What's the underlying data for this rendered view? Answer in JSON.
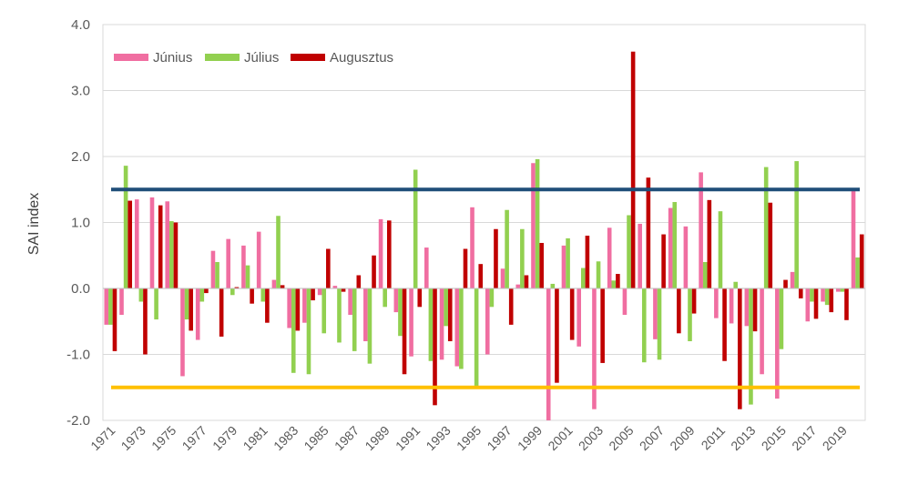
{
  "chart_data": {
    "type": "bar",
    "title": "",
    "xlabel": "",
    "ylabel": "SAI index",
    "ylim": [
      -2.0,
      4.0
    ],
    "yticks": [
      "-2.0",
      "-1.0",
      "0.0",
      "1.0",
      "2.0",
      "3.0",
      "4.0"
    ],
    "ytick_values": [
      -2,
      -1,
      0,
      1,
      2,
      3,
      4
    ],
    "grid": "horizontal",
    "legend_position": "top-left",
    "x": [
      1971,
      1972,
      1973,
      1974,
      1975,
      1976,
      1977,
      1978,
      1979,
      1980,
      1981,
      1982,
      1983,
      1984,
      1985,
      1986,
      1987,
      1988,
      1989,
      1990,
      1991,
      1992,
      1993,
      1994,
      1995,
      1996,
      1997,
      1998,
      1999,
      2000,
      2001,
      2002,
      2003,
      2004,
      2005,
      2006,
      2007,
      2008,
      2009,
      2010,
      2011,
      2012,
      2013,
      2014,
      2015,
      2016,
      2017,
      2018,
      2019,
      2020
    ],
    "xtick_labels": [
      "1971",
      "1973",
      "1975",
      "1977",
      "1979",
      "1981",
      "1983",
      "1985",
      "1987",
      "1989",
      "1991",
      "1993",
      "1995",
      "1997",
      "1999",
      "2001",
      "2003",
      "2005",
      "2007",
      "2009",
      "2011",
      "2013",
      "2015",
      "2017",
      "2019"
    ],
    "series": [
      {
        "name": "Június",
        "color": "#f06ea1",
        "values": [
          -0.55,
          -0.4,
          1.35,
          1.38,
          1.32,
          -1.33,
          -0.78,
          0.57,
          0.75,
          0.65,
          0.86,
          0.13,
          -0.6,
          -0.52,
          -0.1,
          0.04,
          -0.4,
          -0.8,
          1.05,
          -0.36,
          -1.03,
          0.62,
          -1.08,
          -1.18,
          1.23,
          -1.0,
          0.3,
          0.06,
          1.9,
          -2.0,
          0.65,
          -0.88,
          -1.83,
          0.92,
          -0.4,
          0.98,
          -0.77,
          1.22,
          0.94,
          1.76,
          -0.45,
          -0.53,
          -0.57,
          -1.3,
          -1.67,
          0.25,
          -0.5,
          -0.2,
          -0.05,
          1.5
        ]
      },
      {
        "name": "Július",
        "color": "#92d050",
        "values": [
          -0.55,
          1.86,
          -0.2,
          -0.47,
          1.02,
          -0.47,
          -0.2,
          0.4,
          -0.1,
          0.35,
          -0.2,
          1.1,
          -1.28,
          -1.3,
          -0.68,
          -0.82,
          -0.95,
          -1.14,
          -0.28,
          -0.72,
          1.8,
          -1.1,
          -0.57,
          -1.22,
          -1.5,
          -0.28,
          1.19,
          0.9,
          1.96,
          0.07,
          0.76,
          0.31,
          0.41,
          0.12,
          1.11,
          -1.12,
          -1.08,
          1.31,
          -0.8,
          0.4,
          1.17,
          0.1,
          -1.76,
          1.84,
          -0.92,
          1.93,
          -0.2,
          -0.25,
          -0.05,
          0.47
        ]
      },
      {
        "name": "Augusztus",
        "color": "#c00000",
        "values": [
          -0.95,
          1.33,
          -1.0,
          1.26,
          1.0,
          -0.64,
          -0.07,
          -0.73,
          0.02,
          -0.23,
          -0.52,
          0.05,
          -0.64,
          -0.18,
          0.6,
          -0.05,
          0.2,
          0.5,
          1.03,
          -1.3,
          -0.28,
          -1.77,
          -0.8,
          0.6,
          0.37,
          0.9,
          -0.55,
          0.2,
          0.69,
          -1.43,
          -0.78,
          0.8,
          -1.13,
          0.22,
          3.59,
          1.68,
          0.82,
          -0.68,
          -0.38,
          1.34,
          -1.1,
          -1.83,
          -0.65,
          1.3,
          0.13,
          -0.15,
          -0.46,
          -0.36,
          -0.48,
          0.82
        ]
      }
    ],
    "reference_lines": [
      {
        "value": 1.5,
        "color": "#1f4e79"
      },
      {
        "value": -1.5,
        "color": "#ffc000"
      }
    ]
  }
}
